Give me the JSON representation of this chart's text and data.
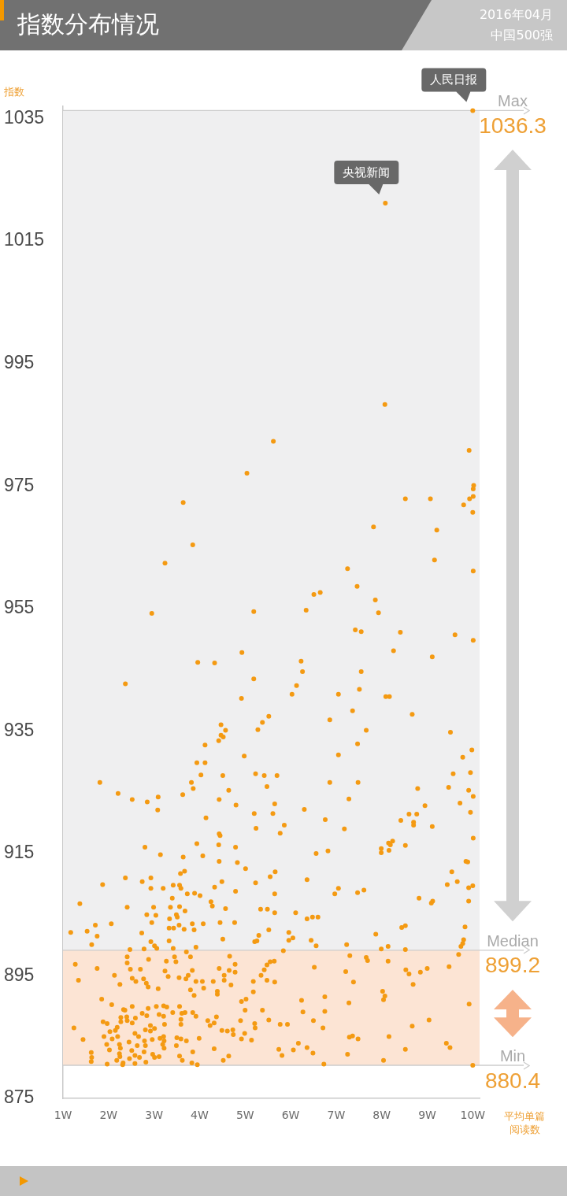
{
  "chart_data": {
    "type": "scatter",
    "title": "指数分布情况",
    "subtitle": "2016年04月",
    "ylabel": "指数",
    "xlabel": "平均单篇阅读数",
    "annotations": [
      "中国500强",
      {
        "text": "人民日报",
        "x": 10.0,
        "y": 1036.3
      },
      {
        "text": "央视新闻",
        "x": 8.08,
        "y": 1021.2
      },
      {
        "text": "1036.3",
        "y": 1036.3
      },
      {
        "text": "899.2",
        "y": 899.2
      },
      {
        "text": "880.4",
        "y": 880.4
      }
    ],
    "color": "#f49a12",
    "marker": "circle",
    "xlim": [
      1,
      10.15
    ],
    "xticks": [
      {
        "value": 1,
        "label": "1W"
      },
      {
        "value": 2,
        "label": "2W"
      },
      {
        "value": 3,
        "label": "3W"
      },
      {
        "value": 4,
        "label": "4W"
      },
      {
        "value": 5,
        "label": "5W"
      },
      {
        "value": 6,
        "label": "6W"
      },
      {
        "value": 7,
        "label": "7W"
      },
      {
        "value": 8,
        "label": "8W"
      },
      {
        "value": 9,
        "label": "9W"
      },
      {
        "value": 10,
        "label": "10W"
      }
    ],
    "ylim": [
      875,
      1037
    ],
    "yticks": [
      875,
      895,
      915,
      935,
      955,
      975,
      995,
      1015,
      1035
    ],
    "bands": [
      {
        "axis": "y",
        "from": 899.2,
        "to": 1036.3,
        "color": "#efeff0"
      },
      {
        "axis": "y",
        "from": 880.4,
        "to": 899.2,
        "color": "#fce4d4"
      }
    ],
    "ref_lines": [
      {
        "axis": "y",
        "value": 1036.3,
        "label": "Max",
        "color": "#cccccc"
      },
      {
        "axis": "y",
        "value": 899.2,
        "label": "Median",
        "color": "#cccccc"
      },
      {
        "axis": "y",
        "value": 880.4,
        "label": "Min",
        "color": "#cccccc"
      }
    ],
    "x": [
      10.0,
      8.08,
      8.07,
      5.62,
      9.92,
      5.04,
      10.02,
      10.01,
      8.52,
      9.07,
      9.93,
      10.01,
      9.8,
      10.0,
      3.64,
      7.82,
      9.21,
      3.85,
      3.24,
      9.16,
      10.01,
      7.25,
      7.46,
      6.51,
      6.65,
      7.86,
      2.95,
      5.19,
      6.34,
      7.93,
      7.42,
      7.55,
      8.41,
      9.61,
      10.01,
      4.93,
      8.26,
      9.11,
      3.96,
      4.33,
      6.23,
      6.26,
      7.55,
      5.19,
      2.37,
      6.13,
      7.51,
      6.03,
      7.05,
      8.09,
      8.17,
      4.92,
      7.36,
      8.67,
      5.52,
      6.86,
      5.38,
      4.47,
      4.57,
      5.28,
      7.66,
      9.51,
      4.47,
      4.52,
      4.42,
      4.12,
      7.47,
      9.98,
      4.98,
      7.05,
      9.78,
      3.94,
      4.12,
      4.03,
      4.51,
      5.23,
      5.42,
      5.7,
      9.57,
      9.95,
      1.81,
      3.82,
      6.86,
      7.48,
      3.86,
      4.64,
      5.48,
      8.79,
      9.47,
      9.91,
      2.21,
      3.63,
      2.52,
      2.85,
      3.09,
      3.08,
      4.43,
      4.8,
      5.65,
      5.2,
      5.61,
      6.3,
      7.28,
      8.95,
      9.72,
      10.01,
      9.95,
      8.6,
      8.77,
      8.42,
      8.7,
      8.7,
      9.11,
      4.14,
      5.24,
      5.86,
      5.77,
      6.76,
      7.18,
      4.43,
      4.45,
      10.01,
      2.8,
      3.14,
      3.94,
      4.42,
      4.79,
      3.64,
      4.07,
      4.43,
      4.83,
      5.01,
      6.56,
      6.82,
      7.99,
      7.99,
      8.15,
      8.24,
      8.19,
      8.16,
      8.52,
      9.85,
      9.89,
      3.67,
      3.58,
      2.37,
      2.74,
      2.93,
      1.87,
      2.93,
      3.2,
      3.42,
      3.56,
      3.59,
      4.49,
      4.33,
      5.23,
      5.55,
      5.66,
      6.36,
      7.05,
      6.97,
      7.47,
      7.61,
      9.54,
      9.44,
      9.66,
      9.91,
      10.0,
      1.37,
      2.41,
      3.73,
      3.89,
      4.01,
      3.4,
      2.99,
      3.36,
      3.56,
      3.68,
      4.25,
      4.28,
      4.57,
      4.79,
      5.65,
      5.34,
      5.49,
      5.65,
      6.11,
      6.36,
      6.48,
      6.6,
      8.82,
      9.09,
      9.12,
      9.91,
      2.84,
      3.04,
      3.34,
      3.49,
      3.51,
      2.95,
      1.17,
      1.53,
      1.75,
      1.71,
      2.06,
      1.63,
      2.73,
      2.93,
      3.01,
      3.06,
      2.78,
      2.47,
      3.33,
      3.43,
      3.66,
      3.55,
      3.84,
      3.88,
      4.08,
      3.33,
      3.42,
      3.71,
      3.92,
      4.45,
      4.77,
      4.51,
      5.21,
      5.26,
      5.3,
      5.52,
      5.96,
      5.96,
      6.05,
      5.84,
      6.45,
      6.56,
      7.23,
      7.87,
      7.99,
      8.14,
      8.44,
      8.52,
      8.52,
      9.83,
      9.8,
      9.78,
      9.74,
      9.69,
      1.27,
      1.34,
      1.75,
      1.85,
      2.07,
      2.13,
      2.25,
      2.41,
      2.41,
      2.48,
      2.52,
      2.6,
      2.7,
      2.88,
      2.77,
      2.83,
      2.87,
      3.09,
      3.27,
      3.45,
      3.48,
      3.24,
      3.31,
      3.55,
      3.7,
      3.75,
      3.84,
      3.8,
      3.92,
      4.06,
      4.09,
      3.8,
      3.88,
      4.3,
      4.43,
      4.54,
      4.54,
      4.65,
      4.78,
      4.78,
      4.66,
      4.69,
      4.39,
      4.39,
      4.92,
      5.02,
      5.18,
      5.18,
      5.35,
      5.42,
      5.48,
      5.55,
      5.64,
      5.48,
      5.65,
      6.24,
      6.52,
      6.75,
      7.21,
      7.3,
      7.38,
      7.66,
      7.69,
      7.28,
      8.14,
      8.02,
      8.07,
      8.04,
      8.53,
      8.6,
      8.69,
      8.85,
      9.0,
      9.48,
      9.92,
      1.24,
      1.44,
      1.62,
      1.63,
      1.62,
      1.97,
      1.88,
      1.97,
      1.9,
      1.96,
      2.02,
      2.03,
      2.08,
      2.15,
      2.19,
      2.2,
      2.18,
      2.24,
      2.26,
      2.24,
      2.25,
      2.32,
      2.31,
      2.27,
      2.27,
      2.4,
      2.41,
      2.33,
      2.36,
      2.52,
      2.52,
      2.59,
      2.45,
      2.51,
      2.46,
      2.58,
      2.58,
      2.58,
      2.66,
      2.63,
      2.68,
      2.82,
      2.78,
      2.74,
      2.87,
      2.84,
      2.81,
      2.92,
      3.01,
      2.92,
      2.79,
      2.81,
      2.96,
      2.97,
      3.01,
      3.11,
      3.05,
      3.11,
      3.21,
      3.23,
      3.21,
      3.28,
      3.13,
      3.21,
      3.22,
      3.19,
      3.22,
      3.41,
      3.56,
      3.61,
      3.68,
      3.59,
      3.59,
      3.5,
      3.59,
      3.71,
      3.49,
      3.56,
      3.62,
      3.85,
      3.92,
      3.85,
      3.99,
      3.83,
      3.95,
      4.18,
      4.23,
      4.32,
      4.37,
      4.32,
      4.49,
      4.61,
      4.73,
      4.74,
      4.52,
      4.64,
      4.9,
      5.0,
      4.99,
      4.92,
      5.14,
      5.21,
      5.22,
      5.38,
      5.52,
      5.77,
      5.93,
      5.74,
      5.81,
      6.06,
      6.17,
      6.36,
      6.49,
      6.27,
      6.5,
      6.75,
      6.71,
      6.73,
      7.25,
      7.29,
      7.36,
      7.48,
      8.16,
      8.04,
      8.52,
      8.67,
      9.04,
      9.42,
      9.5,
      10.0
    ],
    "values": [
      1036.3,
      1021.2,
      988.3,
      982.3,
      980.8,
      977.1,
      975.1,
      974.5,
      972.9,
      972.9,
      972.9,
      973.3,
      971.9,
      970.7,
      972.3,
      968.3,
      967.8,
      965.4,
      962.4,
      962.9,
      961.1,
      961.5,
      958.6,
      957.3,
      957.6,
      956.4,
      954.2,
      954.5,
      954.7,
      954.3,
      951.5,
      951.2,
      951.1,
      950.7,
      949.8,
      947.8,
      948.1,
      947.1,
      946.2,
      946.1,
      946.4,
      944.7,
      944.7,
      943.5,
      942.7,
      942.4,
      941.8,
      941.0,
      941.0,
      940.6,
      940.6,
      940.3,
      938.3,
      937.7,
      937.4,
      936.8,
      936.4,
      936.0,
      935.1,
      935.2,
      935.1,
      934.8,
      934.3,
      934.0,
      933.4,
      932.7,
      932.9,
      931.9,
      930.9,
      931.1,
      930.7,
      929.8,
      929.8,
      927.8,
      927.7,
      928.0,
      927.7,
      927.7,
      928.0,
      928.2,
      926.6,
      926.6,
      926.6,
      926.6,
      925.6,
      925.3,
      925.9,
      925.6,
      925.8,
      925.3,
      924.8,
      924.6,
      923.8,
      923.4,
      924.2,
      922.1,
      923.8,
      922.9,
      923.1,
      921.5,
      921.5,
      922.2,
      923.9,
      922.8,
      923.2,
      924.3,
      921.7,
      921.4,
      921.4,
      920.4,
      920.1,
      919.6,
      919.4,
      920.8,
      919.1,
      919.6,
      918.3,
      920.5,
      919.0,
      918.2,
      917.9,
      917.5,
      916.0,
      914.8,
      916.6,
      916.4,
      916.0,
      914.4,
      914.6,
      913.7,
      913.5,
      912.5,
      915.0,
      915.4,
      915.8,
      915.1,
      916.7,
      917.0,
      916.4,
      915.5,
      916.3,
      913.7,
      913.6,
      912.1,
      911.7,
      911.0,
      910.4,
      911.0,
      909.9,
      909.3,
      909.3,
      909.8,
      909.8,
      909.3,
      910.4,
      909.5,
      910.2,
      911.2,
      912.0,
      910.7,
      909.3,
      908.4,
      908.6,
      909.0,
      912.0,
      909.9,
      910.4,
      909.4,
      909.7,
      906.8,
      906.2,
      908.4,
      908.5,
      908.1,
      907.7,
      906.2,
      906.2,
      906.3,
      905.6,
      907.1,
      906.4,
      906.0,
      908.8,
      908.4,
      905.9,
      905.9,
      905.3,
      905.3,
      904.3,
      904.6,
      904.6,
      907.7,
      906.9,
      907.2,
      907.2,
      905.0,
      904.9,
      904.3,
      905.0,
      904.6,
      903.7,
      902.1,
      902.3,
      901.5,
      903.3,
      903.5,
      900.1,
      902.0,
      900.6,
      899.9,
      899.5,
      899.4,
      899.3,
      902.8,
      902.8,
      902.6,
      903.3,
      903.5,
      902.5,
      903.5,
      900.7,
      899.5,
      898.9,
      899.7,
      903.7,
      903.7,
      901.0,
      900.6,
      900.7,
      901.6,
      902.5,
      902.1,
      900.8,
      901.2,
      899.1,
      900.8,
      899.9,
      900.1,
      901.8,
      899.4,
      899.8,
      902.9,
      903.2,
      899.3,
      903.0,
      900.9,
      900.3,
      899.8,
      898.5,
      896.9,
      894.3,
      896.2,
      891.2,
      890.3,
      895.1,
      893.6,
      898.1,
      897.1,
      896.1,
      894.6,
      894.1,
      896.1,
      897.7,
      894.5,
      893.8,
      893.2,
      892.9,
      897.4,
      898.1,
      897.3,
      895.8,
      894.9,
      894.7,
      894.5,
      895.1,
      895.9,
      898.1,
      894.1,
      894.1,
      893.0,
      892.7,
      891.8,
      894.1,
      896.2,
      895.1,
      894.3,
      895.9,
      895.6,
      896.9,
      898.2,
      893.5,
      892.5,
      892.0,
      890.8,
      891.2,
      894.1,
      892.4,
      895.1,
      896.0,
      896.8,
      897.3,
      897.4,
      894.3,
      894.0,
      891.0,
      896.4,
      891.6,
      895.7,
      898.3,
      894.0,
      898.0,
      897.5,
      890.6,
      897.4,
      892.5,
      891.7,
      891.1,
      896.0,
      895.3,
      893.6,
      895.6,
      896.2,
      896.5,
      890.4,
      886.5,
      884.6,
      882.5,
      881.7,
      881.0,
      880.6,
      887.5,
      887.2,
      885.1,
      883.8,
      882.9,
      885.9,
      884.7,
      886.1,
      886.6,
      885.1,
      881.2,
      883.8,
      883.2,
      882.3,
      881.8,
      880.8,
      880.5,
      888.2,
      887.5,
      888.3,
      887.7,
      889.5,
      889.4,
      890.0,
      887.3,
      888.1,
      884.2,
      882.8,
      881.5,
      882.0,
      880.7,
      885.6,
      885.1,
      883.6,
      881.7,
      880.9,
      882.6,
      888.9,
      889.7,
      888.5,
      886.2,
      886.9,
      886.4,
      886.0,
      884.4,
      883.6,
      884.6,
      882.2,
      881.7,
      881.8,
      890.0,
      888.7,
      888.4,
      887.1,
      890.1,
      889.9,
      884.8,
      885.1,
      884.4,
      883.8,
      883.2,
      889.0,
      890.0,
      888.9,
      889.0,
      887.9,
      887.1,
      884.9,
      884.7,
      884.4,
      883.6,
      881.9,
      881.2,
      889.0,
      888.4,
      882.6,
      884.8,
      880.8,
      880.5,
      887.7,
      886.9,
      887.3,
      888.3,
      883.1,
      886.1,
      886.0,
      886.2,
      885.4,
      881.2,
      881.9,
      887.7,
      889.4,
      885.6,
      884.7,
      884.5,
      887.2,
      886.5,
      889.4,
      887.8,
      887.1,
      887.1,
      883.0,
      882.0,
      882.9,
      884.0,
      883.3,
      882.4,
      889.1,
      887.7,
      889.2,
      886.5,
      880.6,
      882.2,
      885.0,
      885.2,
      884.7,
      885.1,
      881.2,
      883.0,
      886.8,
      887.8,
      884.0,
      883.3,
      880.4
    ]
  }
}
